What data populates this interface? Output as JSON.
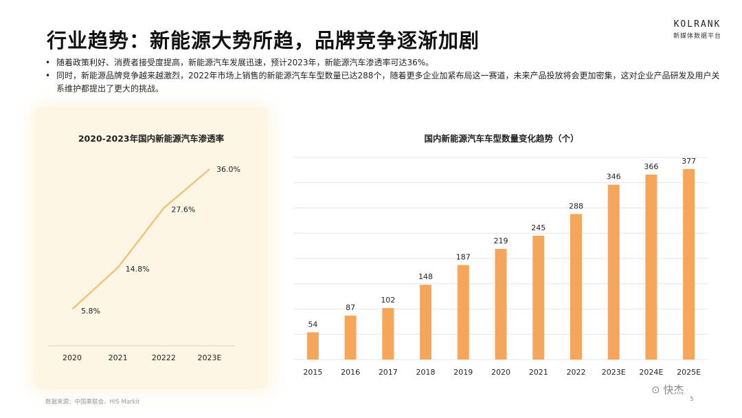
{
  "header": {
    "title": "行业趋势：新能源大势所趋，品牌竞争逐渐加剧",
    "brand_name": "KOLRANK",
    "brand_sub": "新媒体数据平台"
  },
  "bullets": [
    "随着政策利好、消费者接受度提高，新能源汽车发展迅速，预计2023年，新能源汽车渗透率可达36%。",
    "同时，新能源品牌竞争越来越激烈，2022年市场上销售的新能源汽车车型数量已达288个，随着更多企业加紧布局这一赛道，未来产品投放将会更加密集，这对企业产品研发及用户关系维护都提出了更大的挑战。"
  ],
  "bullet_symbol": "•",
  "chart_data": [
    {
      "type": "line",
      "title": "2020-2023年国内新能源汽车渗透率",
      "categories": [
        "2020",
        "2021",
        "20222",
        "2023E"
      ],
      "values": [
        5.8,
        14.8,
        27.6,
        36.0
      ],
      "labels": [
        "5.8%",
        "14.8%",
        "27.6%",
        "36.0%"
      ],
      "ylim": [
        0,
        40
      ],
      "grid": false,
      "color": "#f2c27c"
    },
    {
      "type": "bar",
      "title": "国内新能源汽车车型数量变化趋势（个）",
      "categories": [
        "2015",
        "2016",
        "2017",
        "2018",
        "2019",
        "2020",
        "2021",
        "2022",
        "2023E",
        "2024E",
        "2025E"
      ],
      "values": [
        54,
        87,
        102,
        148,
        187,
        219,
        245,
        288,
        346,
        366,
        377
      ],
      "ylim": [
        0,
        400
      ],
      "grid": true,
      "color": "#f5a65b"
    }
  ],
  "footer": {
    "source": "数据来源：中国乘联会、HIS Markit",
    "watermark": "⊙ 快杰",
    "page": "5"
  }
}
